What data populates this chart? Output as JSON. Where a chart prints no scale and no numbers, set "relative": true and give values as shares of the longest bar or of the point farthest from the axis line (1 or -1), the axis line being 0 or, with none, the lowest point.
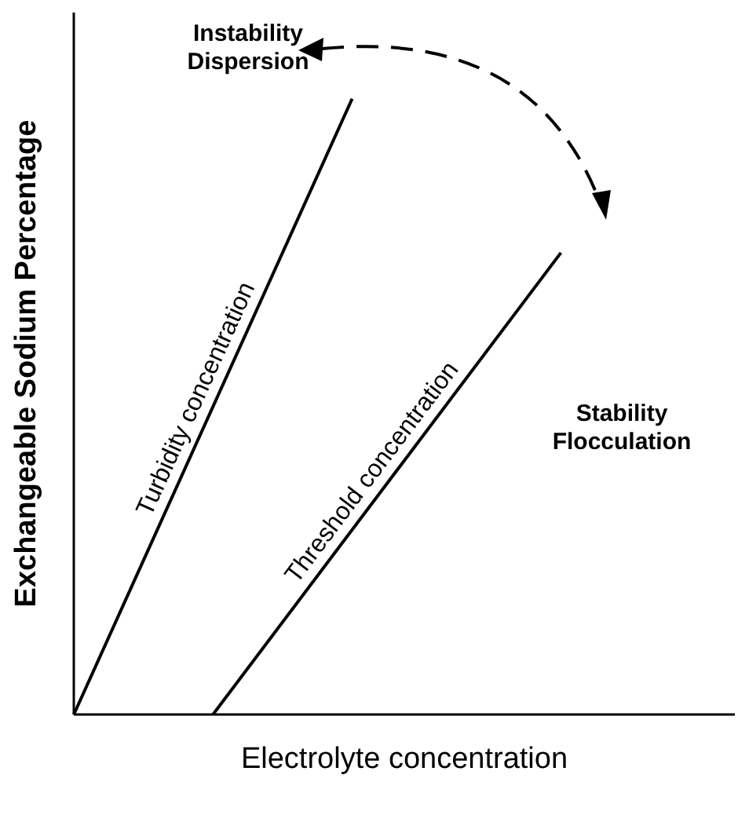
{
  "chart_data": {
    "type": "line",
    "relative": true,
    "xlabel": "Electrolyte concentration",
    "ylabel": "Exchangeable Sodium Percentage",
    "categories": [
      null,
      null,
      null,
      null,
      null,
      null,
      null,
      null,
      null,
      null,
      null,
      null,
      null,
      null,
      null,
      null,
      null,
      null,
      null,
      null
    ],
    "marker": "none",
    "line_style": "solid",
    "series": [
      {
        "name": "Turbidity concentration",
        "color": "#000000",
        "values": [
          0,
          null,
          null,
          null,
          null,
          null,
          null,
          null,
          1,
          null,
          null,
          null,
          null,
          null,
          null,
          null,
          null,
          null,
          null,
          null
        ]
      },
      {
        "name": "Threshold concentration",
        "color": "#000000",
        "values": [
          null,
          null,
          null,
          null,
          0,
          null,
          null,
          null,
          null,
          null,
          null,
          null,
          null,
          null,
          0.75,
          null,
          null,
          null,
          null,
          null
        ]
      }
    ],
    "annotations": [
      "Instability\nDispersion",
      "Stability\nFlocculation"
    ]
  }
}
